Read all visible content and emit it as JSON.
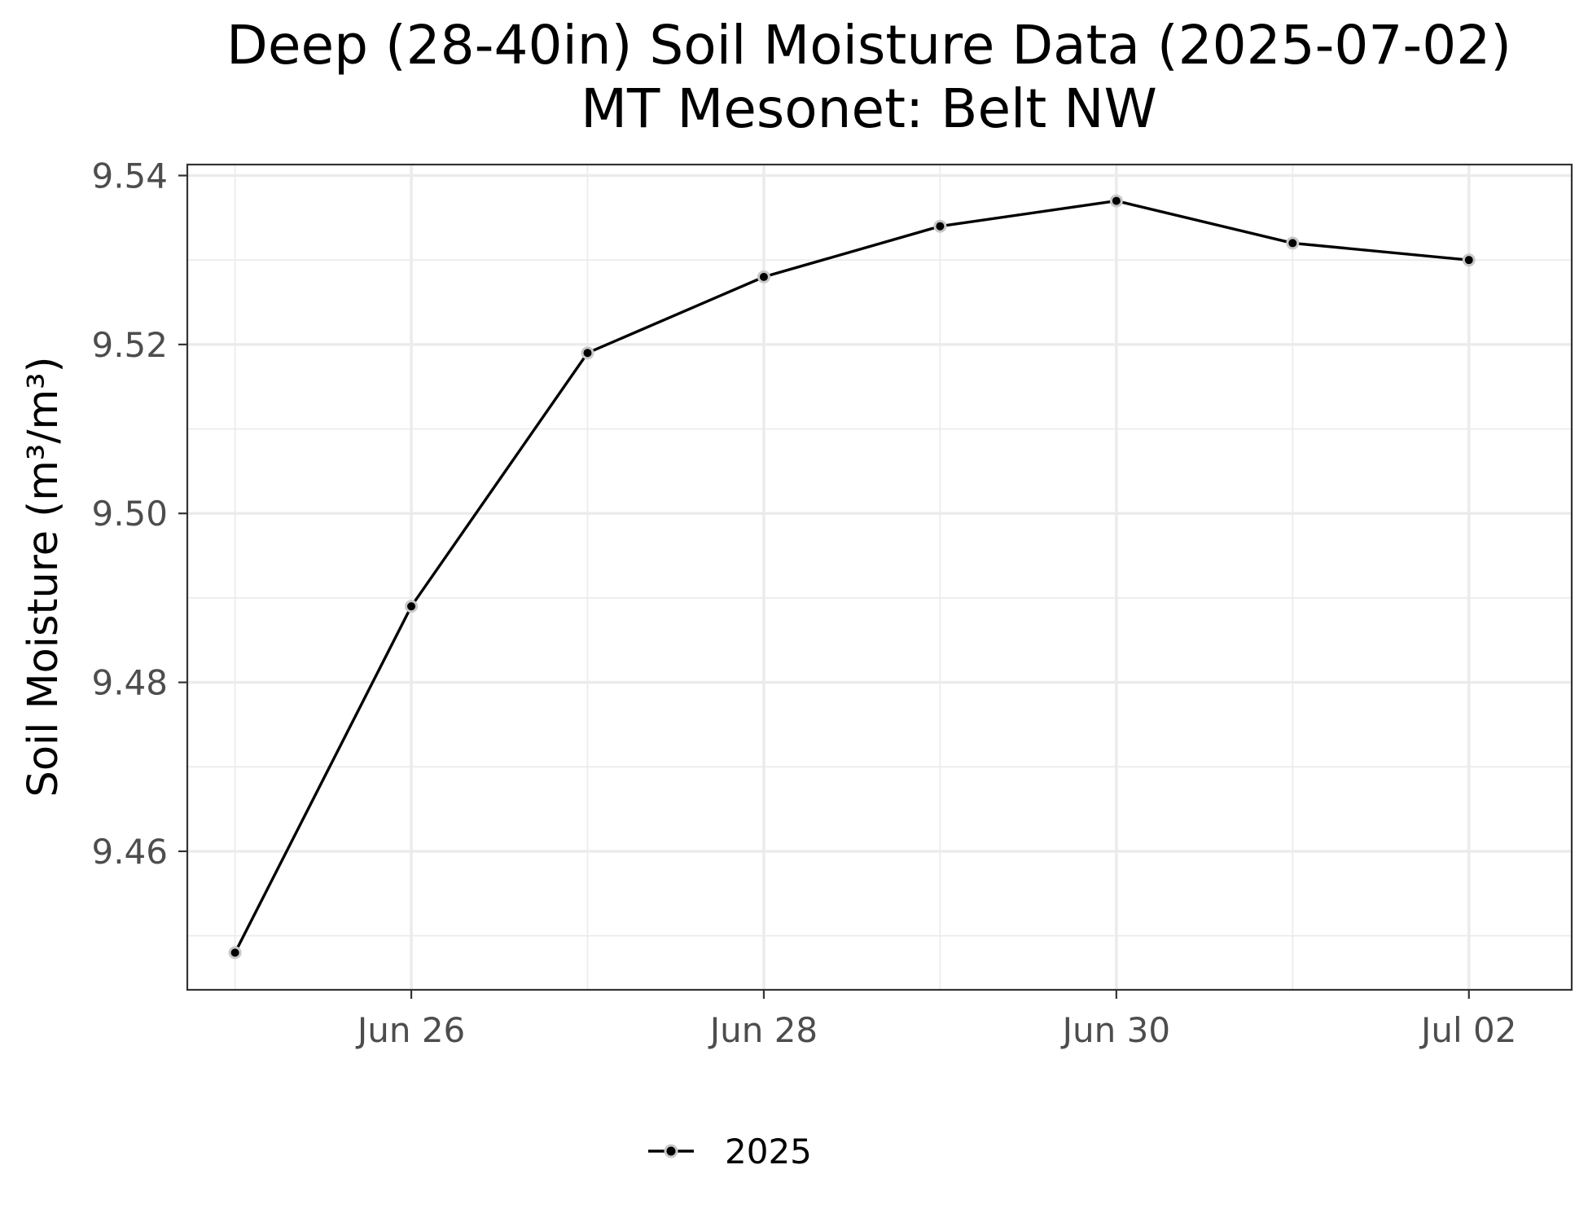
{
  "chart_data": {
    "type": "line",
    "title": "Deep (28-40in) Soil Moisture Data (2025-07-02)",
    "subtitle": "MT Mesonet: Belt NW",
    "xlabel": "",
    "ylabel": "Soil Moisture (m³/m³)",
    "x": [
      "2025-06-25",
      "2025-06-26",
      "2025-06-27",
      "2025-06-28",
      "2025-06-29",
      "2025-06-30",
      "2025-07-01",
      "2025-07-02"
    ],
    "x_ticks": [
      {
        "date": "2025-06-26",
        "label": "Jun 26"
      },
      {
        "date": "2025-06-28",
        "label": "Jun 28"
      },
      {
        "date": "2025-06-30",
        "label": "Jun 30"
      },
      {
        "date": "2025-07-02",
        "label": "Jul 02"
      }
    ],
    "x_minor_ticks": [
      "2025-06-25",
      "2025-06-27",
      "2025-06-29",
      "2025-07-01"
    ],
    "xlim": [
      "2025-06-24T17:30",
      "2025-07-02T14:00"
    ],
    "y_ticks": [
      {
        "value": 9.46,
        "label": "9.46"
      },
      {
        "value": 9.48,
        "label": "9.48"
      },
      {
        "value": 9.5,
        "label": "9.50"
      },
      {
        "value": 9.52,
        "label": "9.52"
      },
      {
        "value": 9.54,
        "label": "9.54"
      }
    ],
    "y_minor_ticks": [
      9.45,
      9.47,
      9.49,
      9.51,
      9.53
    ],
    "ylim": [
      9.4436,
      9.5413
    ],
    "grid": true,
    "legend_position": "bottom",
    "series": [
      {
        "name": "2025",
        "color": "#000000",
        "values": [
          9.448,
          9.489,
          9.519,
          9.528,
          9.534,
          9.537,
          9.532,
          9.53
        ]
      }
    ]
  }
}
